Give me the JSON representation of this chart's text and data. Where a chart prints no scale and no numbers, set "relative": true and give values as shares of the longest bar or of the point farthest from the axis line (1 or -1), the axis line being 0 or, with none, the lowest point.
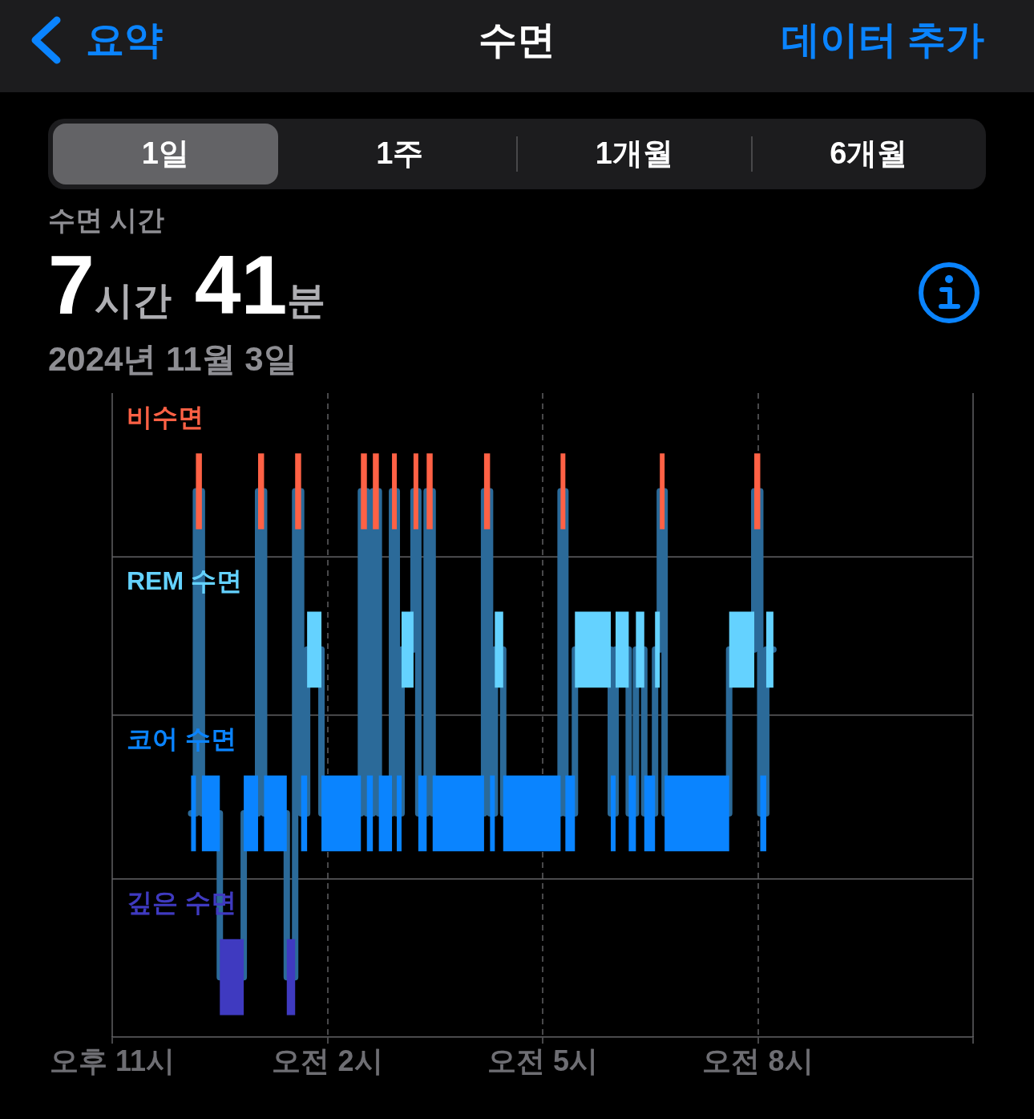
{
  "chart_data": {
    "type": "line",
    "title": "수면",
    "relative": true,
    "annotations": [
      "요약",
      "데이터 추가",
      "1일",
      "1주",
      "1개월",
      "6개월",
      "수면 시간",
      "7시간 41분",
      "2024년 11월 3일"
    ],
    "series": [
      {
        "name": "비수면",
        "color": "#ff6145",
        "x": [
          "2024-11-03T00:10",
          "2024-11-03T00:15",
          null,
          "2024-11-03T01:02",
          "2024-11-03T01:07",
          null,
          "2024-11-03T01:33",
          "2024-11-03T01:38",
          null,
          "2024-11-03T02:28",
          "2024-11-03T02:33",
          null,
          "2024-11-03T02:38",
          "2024-11-03T02:43",
          null,
          "2024-11-03T02:54",
          "2024-11-03T02:58",
          null,
          "2024-11-03T03:12",
          "2024-11-03T03:16",
          null,
          "2024-11-03T03:23",
          "2024-11-03T03:28",
          null,
          "2024-11-03T04:11",
          "2024-11-03T04:16",
          null,
          "2024-11-03T05:15",
          "2024-11-03T05:19",
          null,
          "2024-11-03T06:38",
          "2024-11-03T06:42",
          null,
          "2024-11-03T07:57",
          "2024-11-03T08:02"
        ],
        "values": [
          1,
          1,
          null,
          1,
          1,
          null,
          1,
          1,
          null,
          1,
          1,
          null,
          1,
          1,
          null,
          1,
          1,
          null,
          1,
          1,
          null,
          1,
          1,
          null,
          1,
          1,
          null,
          1,
          1,
          null,
          1,
          1,
          null,
          1,
          1
        ]
      },
      {
        "name": "REM 수면",
        "color": "#64d2ff",
        "x": [
          "2024-11-03T01:43",
          "2024-11-03T01:55",
          null,
          "2024-11-03T03:02",
          "2024-11-03T03:12",
          null,
          "2024-11-03T04:20",
          "2024-11-03T04:27",
          null,
          "2024-11-03T05:27",
          "2024-11-03T05:57",
          null,
          "2024-11-03T06:01",
          "2024-11-03T06:12",
          null,
          "2024-11-03T06:18",
          "2024-11-03T06:25",
          null,
          "2024-11-03T06:34",
          "2024-11-03T06:38",
          null,
          "2024-11-03T07:36",
          "2024-11-03T07:57",
          null,
          "2024-11-03T08:07",
          "2024-11-03T08:13"
        ],
        "values": [
          0.71,
          0.71,
          null,
          0.71,
          0.71,
          null,
          0.71,
          0.71,
          null,
          0.71,
          0.71,
          null,
          0.71,
          0.71,
          null,
          0.71,
          0.71,
          null,
          0.71,
          0.71,
          null,
          0.71,
          0.71,
          null,
          0.71,
          0.71
        ]
      },
      {
        "name": "코어 수면",
        "color": "#0a84ff",
        "x": [
          "2024-11-03T00:06",
          "2024-11-03T00:10",
          null,
          "2024-11-03T00:15",
          "2024-11-03T00:30",
          null,
          "2024-11-03T00:50",
          "2024-11-03T01:02",
          null,
          "2024-11-03T01:07",
          "2024-11-03T01:26",
          null,
          "2024-11-03T01:38",
          "2024-11-03T01:43",
          null,
          "2024-11-03T01:55",
          "2024-11-03T02:28",
          null,
          "2024-11-03T02:33",
          "2024-11-03T02:38",
          null,
          "2024-11-03T02:43",
          "2024-11-03T02:54",
          null,
          "2024-11-03T02:58",
          "2024-11-03T03:02",
          null,
          "2024-11-03T03:16",
          "2024-11-03T03:23",
          null,
          "2024-11-03T03:28",
          "2024-11-03T04:11",
          null,
          "2024-11-03T04:16",
          "2024-11-03T04:20",
          null,
          "2024-11-03T04:27",
          "2024-11-03T05:15",
          null,
          "2024-11-03T05:19",
          "2024-11-03T05:27",
          null,
          "2024-11-03T05:57",
          "2024-11-03T06:01",
          null,
          "2024-11-03T06:12",
          "2024-11-03T06:18",
          null,
          "2024-11-03T06:25",
          "2024-11-03T06:34",
          null,
          "2024-11-03T06:42",
          "2024-11-03T07:36",
          null,
          "2024-11-03T08:02",
          "2024-11-03T08:07"
        ],
        "values": [
          0.41,
          0.41,
          null,
          0.41,
          0.41,
          null,
          0.41,
          0.41,
          null,
          0.41,
          0.41,
          null,
          0.41,
          0.41,
          null,
          0.41,
          0.41,
          null,
          0.41,
          0.41,
          null,
          0.41,
          0.41,
          null,
          0.41,
          0.41,
          null,
          0.41,
          0.41,
          null,
          0.41,
          0.41,
          null,
          0.41,
          0.41,
          null,
          0.41,
          0.41,
          null,
          0.41,
          0.41,
          null,
          0.41,
          0.41,
          null,
          0.41,
          0.41,
          null,
          0.41,
          0.41,
          null,
          0.41,
          0.41,
          null,
          0.41,
          0.41
        ]
      },
      {
        "name": "깊은 수면",
        "color": "#3f3ac0",
        "x": [
          "2024-11-03T00:30",
          "2024-11-03T00:50",
          null,
          "2024-11-03T01:26",
          "2024-11-03T01:33"
        ],
        "values": [
          0.11,
          0.11,
          null,
          0.11,
          0.11
        ]
      },
      {
        "type": "step",
        "color": "#2b6a99",
        "x": [
          "2024-11-03T00:06",
          "2024-11-03T00:10",
          "2024-11-03T00:15",
          "2024-11-03T00:30",
          "2024-11-03T00:50",
          "2024-11-03T01:02",
          "2024-11-03T01:07",
          "2024-11-03T01:26",
          "2024-11-03T01:33",
          "2024-11-03T01:38",
          "2024-11-03T01:43",
          "2024-11-03T01:55",
          "2024-11-03T02:28",
          "2024-11-03T02:33",
          "2024-11-03T02:38",
          "2024-11-03T02:43",
          "2024-11-03T02:54",
          "2024-11-03T02:58",
          "2024-11-03T03:02",
          "2024-11-03T03:12",
          "2024-11-03T03:16",
          "2024-11-03T03:23",
          "2024-11-03T03:28",
          "2024-11-03T04:11",
          "2024-11-03T04:16",
          "2024-11-03T04:20",
          "2024-11-03T04:27",
          "2024-11-03T05:15",
          "2024-11-03T05:19",
          "2024-11-03T05:27",
          "2024-11-03T05:57",
          "2024-11-03T06:01",
          "2024-11-03T06:12",
          "2024-11-03T06:18",
          "2024-11-03T06:25",
          "2024-11-03T06:34",
          "2024-11-03T06:38",
          "2024-11-03T06:42",
          "2024-11-03T07:36",
          "2024-11-03T07:57",
          "2024-11-03T08:02",
          "2024-11-03T08:07",
          "2024-11-03T08:13"
        ],
        "values": [
          0.41,
          1,
          0.41,
          0.11,
          0.41,
          1,
          0.41,
          0.11,
          1,
          0.41,
          0.71,
          0.41,
          1,
          0.41,
          1,
          0.41,
          1,
          0.41,
          0.71,
          1,
          0.41,
          1,
          0.41,
          1,
          0.41,
          0.71,
          0.41,
          1,
          0.41,
          0.71,
          0.41,
          0.71,
          0.41,
          0.71,
          0.41,
          0.71,
          1,
          0.41,
          0.71,
          1,
          0.41,
          0.71,
          0.71
        ]
      }
    ],
    "xlim": [
      "2024-11-02T23:00",
      "2024-11-03T11:00"
    ],
    "xticks": [
      {
        "value": "2024-11-02T23:00",
        "label": "오후 11시"
      },
      {
        "value": "2024-11-03T02:00",
        "label": "오전 2시"
      },
      {
        "value": "2024-11-03T05:00",
        "label": "오전 5시"
      },
      {
        "value": "2024-11-03T08:00",
        "label": "오전 8시"
      },
      {
        "value": "2024-11-03T11:00",
        "label": null
      }
    ],
    "ref_lines": [
      {
        "axis": "y",
        "value": 0.88,
        "color": "#636366"
      },
      {
        "axis": "y",
        "value": 0.59,
        "color": "#636366"
      },
      {
        "axis": "y",
        "value": 0.29,
        "color": "#636366"
      }
    ],
    "grid": "x"
  }
}
